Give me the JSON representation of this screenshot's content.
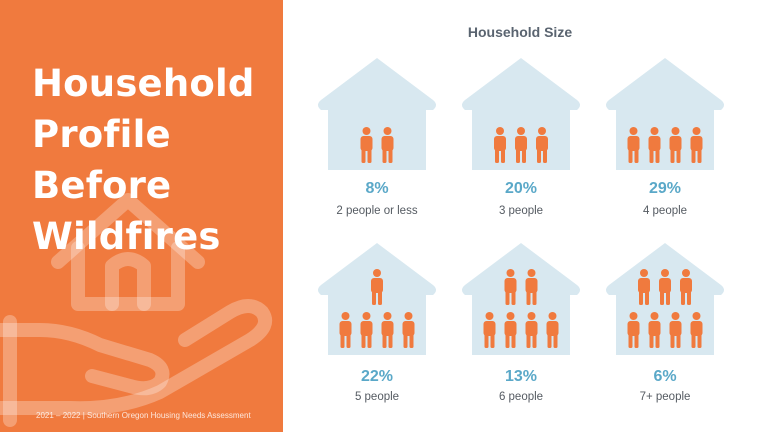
{
  "left": {
    "title_lines": [
      "Household",
      "Profile",
      "Before",
      "Wildfires"
    ],
    "footer": "2021 – 2022 | Southern Oregon Housing Needs Assessment",
    "icon": "house-in-hand-icon"
  },
  "colors": {
    "panel": "#f07a3e",
    "house": "#d8e8f0",
    "person": "#f07a3e",
    "percent": "#5aa8c8"
  },
  "chart_data": {
    "type": "pictograph",
    "title": "Household Size",
    "categories": [
      "2 people or less",
      "3 people",
      "4 people",
      "5 people",
      "6 people",
      "7+ people"
    ],
    "values": [
      8,
      20,
      29,
      22,
      13,
      6
    ],
    "value_labels": [
      "8%",
      "20%",
      "29%",
      "22%",
      "13%",
      "6%"
    ],
    "people_icons": [
      2,
      3,
      4,
      5,
      6,
      7
    ]
  }
}
